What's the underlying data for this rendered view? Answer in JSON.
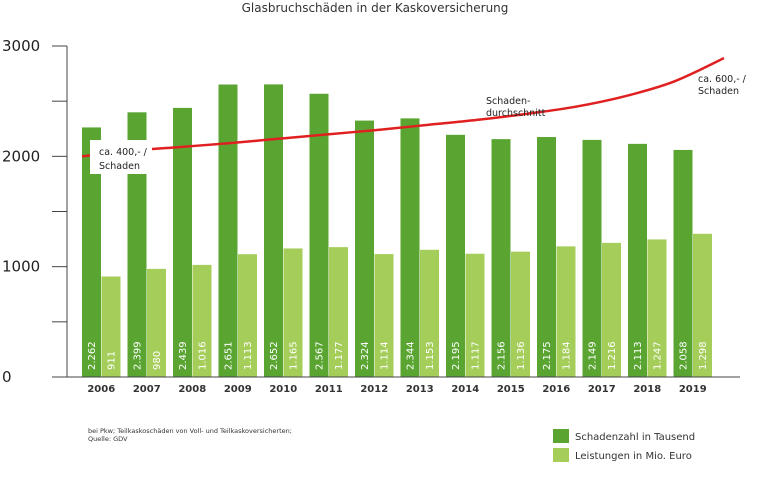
{
  "chart_data": {
    "type": "bar",
    "title": "Glasbruchschäden in der Kaskoversicherung",
    "categories": [
      "2006",
      "2007",
      "2008",
      "2009",
      "2010",
      "2011",
      "2012",
      "2013",
      "2014",
      "2015",
      "2016",
      "2017",
      "2018",
      "2019"
    ],
    "series": [
      {
        "name": "Schadenzahl in Tausend",
        "color": "#5aa532",
        "values": [
          2262,
          2399,
          2439,
          2651,
          2652,
          2567,
          2324,
          2344,
          2195,
          2156,
          2175,
          2149,
          2113,
          2058
        ],
        "labels": [
          "2.262",
          "2.399",
          "2.439",
          "2.651",
          "2.652",
          "2.567",
          "2.324",
          "2.344",
          "2.195",
          "2.156",
          "2.175",
          "2.149",
          "2.113",
          "2.058"
        ]
      },
      {
        "name": "Leistungen in Mio. Euro",
        "color": "#a5cd5a",
        "values": [
          911,
          980,
          1016,
          1113,
          1165,
          1177,
          1114,
          1153,
          1117,
          1136,
          1184,
          1216,
          1247,
          1298
        ],
        "labels": [
          "911",
          "980",
          "1.016",
          "1.113",
          "1.165",
          "1.177",
          "1.114",
          "1.153",
          "1.117",
          "1.136",
          "1.184",
          "1.216",
          "1.247",
          "1.298"
        ]
      }
    ],
    "line": {
      "name": "Schaden-durchschnitt",
      "name_lines": [
        "Schaden-",
        "durchschnitt"
      ],
      "color": "#e02020",
      "values": [
        2000,
        2050,
        2085,
        2120,
        2160,
        2200,
        2240,
        2285,
        2330,
        2385,
        2450,
        2545,
        2680,
        2890
      ]
    },
    "annotations": [
      {
        "lines": [
          "ca. 400,- /",
          "Schaden"
        ]
      },
      {
        "lines": [
          "ca. 600,- /",
          "Schaden"
        ]
      }
    ],
    "ylim": [
      0,
      3000
    ],
    "yticks": [
      0,
      1000,
      2000,
      3000
    ],
    "yticks_minor": [
      500,
      1500,
      2500
    ],
    "note": [
      "bei Pkw; Teilkaskoschäden von Voll- und Teilkaskoversicherten;",
      "Quelle: GDV"
    ],
    "legend_position": "bottom-right"
  }
}
